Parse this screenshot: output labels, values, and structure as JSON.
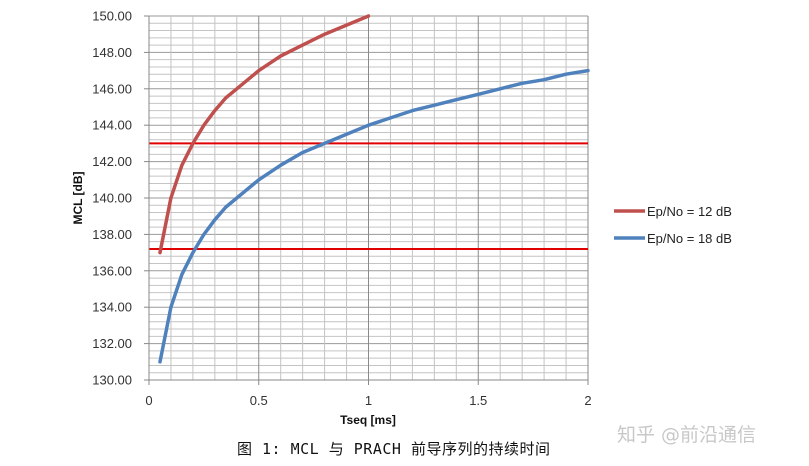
{
  "chart_data": {
    "type": "line",
    "title": "",
    "xlabel": "Tseq [ms]",
    "ylabel": "MCL [dB]",
    "xlim": [
      0,
      2
    ],
    "ylim": [
      130,
      150
    ],
    "x_ticks": [
      "0",
      "0.5",
      "1",
      "1.5",
      "2"
    ],
    "y_ticks": [
      "130.00",
      "132.00",
      "134.00",
      "136.00",
      "138.00",
      "140.00",
      "142.00",
      "144.00",
      "146.00",
      "148.00",
      "150.00"
    ],
    "grid": true,
    "legend_position": "right",
    "series": [
      {
        "name": "Ep/No = 12 dB",
        "color": "#c0504d",
        "x": [
          0.05,
          0.1,
          0.15,
          0.2,
          0.25,
          0.3,
          0.35,
          0.4,
          0.45,
          0.5,
          0.55,
          0.6,
          0.7,
          0.8,
          0.9,
          1.0
        ],
        "y": [
          137.0,
          140.0,
          141.8,
          143.0,
          144.0,
          144.8,
          145.5,
          146.0,
          146.5,
          147.0,
          147.4,
          147.8,
          148.4,
          149.0,
          149.5,
          150.0
        ]
      },
      {
        "name": "Ep/No = 18 dB",
        "color": "#4f81bd",
        "x": [
          0.05,
          0.1,
          0.15,
          0.2,
          0.25,
          0.3,
          0.35,
          0.4,
          0.45,
          0.5,
          0.6,
          0.7,
          0.8,
          0.9,
          1.0,
          1.1,
          1.2,
          1.3,
          1.4,
          1.5,
          1.6,
          1.7,
          1.8,
          1.9,
          2.0
        ],
        "y": [
          131.0,
          134.0,
          135.8,
          137.0,
          138.0,
          138.8,
          139.5,
          140.0,
          140.5,
          141.0,
          141.8,
          142.5,
          143.0,
          143.5,
          144.0,
          144.4,
          144.8,
          145.1,
          145.4,
          145.7,
          146.0,
          146.3,
          146.5,
          146.8,
          147.0
        ]
      }
    ],
    "reference_lines": [
      {
        "y": 143.0,
        "color": "#e00000"
      },
      {
        "y": 137.2,
        "color": "#e00000"
      }
    ]
  },
  "caption": "图 1: MCL 与 PRACH 前导序列的持续时间",
  "watermark": "知乎 @前沿通信"
}
